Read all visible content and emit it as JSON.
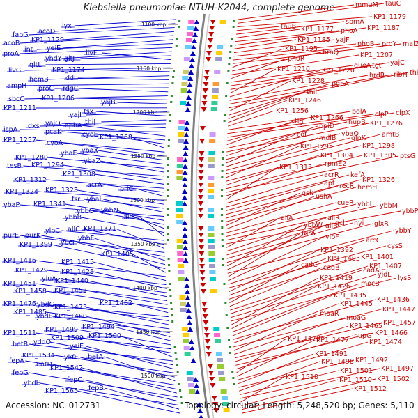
{
  "title": "Klebsiella pneumoniae NTUH-K2044, complete genome",
  "accession": "Accession: NC_012731",
  "summary": "Topology: circular; Length: 5,248,520 bp; Genes: 5,110",
  "colors": {
    "forward": "#0000cc",
    "reverse": "#cc0000",
    "backbone": "#808080",
    "tick": "#2e8b2e"
  },
  "kbp_ticks": [
    "1100 kbp",
    "1150 kbp",
    "1200 kbp",
    "1250 kbp",
    "1300 kbp",
    "1350 kbp",
    "1400 kbp",
    "1450 kbp",
    "1500 kbp"
  ],
  "forward_genes": [
    [
      "lyx",
      89,
      40
    ],
    [
      "acoD",
      55,
      48
    ],
    [
      "fabG",
      18,
      53
    ],
    [
      "KP1_1129",
      45,
      60
    ],
    [
      "acoB",
      5,
      65
    ],
    [
      "yeiE",
      67,
      72
    ],
    [
      "int",
      35,
      74
    ],
    [
      "proA",
      5,
      80
    ],
    [
      "yhdY",
      65,
      87
    ],
    [
      "gltJ",
      92,
      87
    ],
    [
      "livF",
      123,
      79
    ],
    [
      "gltL",
      42,
      96
    ],
    [
      "livG",
      12,
      104
    ],
    [
      "KP1_1174",
      75,
      103
    ],
    [
      "hemB",
      42,
      117
    ],
    [
      "ddl",
      94,
      115
    ],
    [
      "ampH",
      10,
      126
    ],
    [
      "proC",
      55,
      130
    ],
    [
      "rdgC",
      90,
      130
    ],
    [
      "sbcC",
      12,
      145
    ],
    [
      "KP1_1206",
      60,
      144
    ],
    [
      "yajB",
      145,
      150
    ],
    [
      "KP1_1211",
      5,
      158
    ],
    [
      "yajI",
      100,
      168
    ],
    [
      "tsx",
      120,
      163
    ],
    [
      "thiJ",
      122,
      178
    ],
    [
      "dxs",
      40,
      184
    ],
    [
      "yajO",
      65,
      180
    ],
    [
      "ispA",
      5,
      189
    ],
    [
      "apbA",
      93,
      183
    ],
    [
      "pcaK",
      65,
      192
    ],
    [
      "cyoE",
      118,
      196
    ],
    [
      "KP1_1268",
      143,
      200
    ],
    [
      "KP1_1257",
      5,
      204
    ],
    [
      "cyoA",
      67,
      208
    ],
    [
      "ybaX",
      117,
      219
    ],
    [
      "ybaE",
      87,
      223
    ],
    [
      "KP1_1280",
      22,
      229
    ],
    [
      "ybaZ",
      120,
      234
    ],
    [
      "tesB",
      10,
      241
    ],
    [
      "KP1_1294",
      45,
      240
    ],
    [
      "KP1_1308",
      90,
      253
    ],
    [
      "KP1_1312",
      20,
      261
    ],
    [
      "acrA",
      125,
      268
    ],
    [
      "priC",
      172,
      274
    ],
    [
      "KP1_1324",
      8,
      278
    ],
    [
      "KP1_1323",
      65,
      276
    ],
    [
      "fsr",
      103,
      289
    ],
    [
      "ybaL",
      125,
      289
    ],
    [
      "ybaP",
      5,
      297
    ],
    [
      "KP1_1341",
      48,
      296
    ],
    [
      "ybbO",
      110,
      306
    ],
    [
      "ybbN",
      145,
      305
    ],
    [
      "ybbB",
      93,
      315
    ],
    [
      "allS",
      177,
      314
    ],
    [
      "ylbC",
      65,
      334
    ],
    [
      "allC",
      97,
      332
    ],
    [
      "KP1_1371",
      120,
      331
    ],
    [
      "purE",
      5,
      341
    ],
    [
      "purK",
      36,
      341
    ],
    [
      "ybbF",
      112,
      345
    ],
    [
      "ybcI",
      87,
      351
    ],
    [
      "KP1_1399",
      28,
      354
    ],
    [
      "KP1_1405",
      145,
      368
    ],
    [
      "KP1_1416",
      5,
      377
    ],
    [
      "KP1_1415",
      88,
      379
    ],
    [
      "KP1_1429",
      22,
      391
    ],
    [
      "KP1_1428",
      88,
      393
    ],
    [
      "yiuA",
      60,
      403
    ],
    [
      "KP1_1440",
      80,
      406
    ],
    [
      "KP1_1451",
      5,
      410
    ],
    [
      "KP1_1453",
      78,
      420
    ],
    [
      "KP1_1458",
      20,
      421
    ],
    [
      "KP1_1462",
      143,
      438
    ],
    [
      "KP1_1476",
      5,
      439
    ],
    [
      "ybdG",
      53,
      440
    ],
    [
      "KP1_1473",
      78,
      444
    ],
    [
      "KP1_1485",
      20,
      451
    ],
    [
      "ybdF",
      52,
      457
    ],
    [
      "KP1_1480",
      78,
      457
    ],
    [
      "KP1_1494",
      118,
      472
    ],
    [
      "KP1_1499",
      65,
      476
    ],
    [
      "KP1_1511",
      5,
      481
    ],
    [
      "KP1_1509",
      73,
      488
    ],
    [
      "KP1_1500",
      127,
      485
    ],
    [
      "betB",
      18,
      497
    ],
    [
      "yddO",
      48,
      494
    ],
    [
      "yeiE",
      100,
      500
    ],
    [
      "KP1_1534",
      32,
      513
    ],
    [
      "ykfE",
      92,
      516
    ],
    [
      "betA",
      126,
      515
    ],
    [
      "fepA",
      13,
      521
    ],
    [
      "entD",
      52,
      526
    ],
    [
      "KP1_1542",
      72,
      531
    ],
    [
      "fepG",
      18,
      538
    ],
    [
      "fepC",
      96,
      548
    ],
    [
      "ybdH",
      34,
      553
    ],
    [
      "fepB",
      127,
      560
    ],
    [
      "KP1_1565",
      65,
      564
    ]
  ],
  "reverse_genes": [
    [
      "mmuM",
      510,
      10
    ],
    [
      "tauC",
      553,
      8
    ],
    [
      "KP1_1179",
      536,
      27
    ],
    [
      "tauB",
      403,
      41
    ],
    [
      "sbmA",
      496,
      34
    ],
    [
      "KP1_1177",
      432,
      45
    ],
    [
      "phoA",
      489,
      47
    ],
    [
      "KP1_1187",
      527,
      43
    ],
    [
      "KP1_1185",
      427,
      60
    ],
    [
      "yajF",
      482,
      60
    ],
    [
      "phoB",
      513,
      66
    ],
    [
      "proY",
      548,
      66
    ],
    [
      "malZ",
      578,
      66
    ],
    [
      "KP1_1195",
      409,
      73
    ],
    [
      "brnQ",
      463,
      78
    ],
    [
      "KP1_1207",
      517,
      82
    ],
    [
      "phoR",
      413,
      87
    ],
    [
      "queA",
      508,
      97
    ],
    [
      "tgt",
      534,
      97
    ],
    [
      "yajC",
      560,
      93
    ],
    [
      "KP1_1210",
      398,
      102
    ],
    [
      "KP1_1220",
      462,
      104
    ],
    [
      "hrdR",
      530,
      111
    ],
    [
      "ribH",
      565,
      110
    ],
    [
      "thiL",
      588,
      107
    ],
    [
      "KP1_1228",
      419,
      119
    ],
    [
      "pgpA",
      476,
      123
    ],
    [
      "thiI",
      440,
      135
    ],
    [
      "KP1_1246",
      414,
      147
    ],
    [
      "KP1_1256",
      396,
      162
    ],
    [
      "bolA",
      505,
      163
    ],
    [
      "clpP",
      538,
      167
    ],
    [
      "clpX",
      568,
      165
    ],
    [
      "KP1_1266",
      446,
      172
    ],
    [
      "tig",
      423,
      177
    ],
    [
      "hupB",
      500,
      178
    ],
    [
      "KP1_1276",
      531,
      180
    ],
    [
      "ppiD",
      458,
      184
    ],
    [
      "ybaO",
      490,
      195
    ],
    [
      "cof",
      426,
      196
    ],
    [
      "mdlB",
      458,
      201
    ],
    [
      "glnK",
      504,
      201
    ],
    [
      "amtB",
      548,
      196
    ],
    [
      "KP1_1295",
      431,
      213
    ],
    [
      "KP1_1298",
      520,
      212
    ],
    [
      "KP1_1304",
      460,
      226
    ],
    [
      "KP1_1305",
      522,
      226
    ],
    [
      "ptsG",
      574,
      227
    ],
    [
      "rpmE2",
      466,
      238
    ],
    [
      "KP1_1313",
      401,
      243
    ],
    [
      "acrR",
      465,
      254
    ],
    [
      "kefA",
      503,
      254
    ],
    [
      "apt",
      465,
      266
    ],
    [
      "KP1_1326",
      520,
      261
    ],
    [
      "recR",
      487,
      270
    ],
    [
      "hemH",
      513,
      272
    ],
    [
      "gsk",
      433,
      280
    ],
    [
      "ushA",
      453,
      285
    ],
    [
      "cueR",
      484,
      294
    ],
    [
      "ybbL",
      513,
      296
    ],
    [
      "ybbM",
      545,
      298
    ],
    [
      "ybbP",
      577,
      306
    ],
    [
      "allA",
      403,
      316
    ],
    [
      "allR",
      470,
      316
    ],
    [
      "gcl",
      481,
      323
    ],
    [
      "hyi",
      508,
      323
    ],
    [
      "glxR",
      537,
      324
    ],
    [
      "ybbW",
      436,
      326
    ],
    [
      "allB",
      467,
      327
    ],
    [
      "ybbY",
      567,
      334
    ],
    [
      "fdrA",
      433,
      338
    ],
    [
      "ylbF",
      467,
      343
    ],
    [
      "arcC",
      525,
      348
    ],
    [
      "cysS",
      556,
      356
    ],
    [
      "KP1_1392",
      460,
      362
    ],
    [
      "KP1_1403",
      470,
      374
    ],
    [
      "KP1_1401",
      518,
      372
    ],
    [
      "cadC",
      432,
      383
    ],
    [
      "cadB",
      464,
      387
    ],
    [
      "KP1_1407",
      530,
      385
    ],
    [
      "cadA",
      521,
      391
    ],
    [
      "yjdL",
      542,
      397
    ],
    [
      "lysS",
      571,
      402
    ],
    [
      "KP1_1419",
      459,
      402
    ],
    [
      "KP1_1426",
      456,
      414
    ],
    [
      "mocB",
      518,
      410
    ],
    [
      "KP1_1435",
      479,
      427
    ],
    [
      "KP1_1436",
      541,
      433
    ],
    [
      "KP1_1445",
      488,
      439
    ],
    [
      "KP1_1447",
      549,
      447
    ],
    [
      "moaR",
      459,
      453
    ],
    [
      "moaG",
      497,
      459
    ],
    [
      "KP1_1457",
      550,
      466
    ],
    [
      "KP1_1465",
      502,
      471
    ],
    [
      "KP1_1466",
      538,
      481
    ],
    [
      "nupG",
      508,
      485
    ],
    [
      "KP1_1479",
      413,
      489
    ],
    [
      "KP1_1477",
      454,
      491
    ],
    [
      "KP1_1474",
      530,
      494
    ],
    [
      "KP1_1491",
      452,
      511
    ],
    [
      "KP1_1492",
      510,
      520
    ],
    [
      "KP1_1498",
      461,
      522
    ],
    [
      "KP1_1501",
      488,
      535
    ],
    [
      "KP1_1497",
      547,
      532
    ],
    [
      "KP1_1518",
      410,
      544
    ],
    [
      "KP1_1510",
      487,
      548
    ],
    [
      "KP1_1502",
      541,
      547
    ],
    [
      "KP1_1512",
      508,
      561
    ]
  ]
}
